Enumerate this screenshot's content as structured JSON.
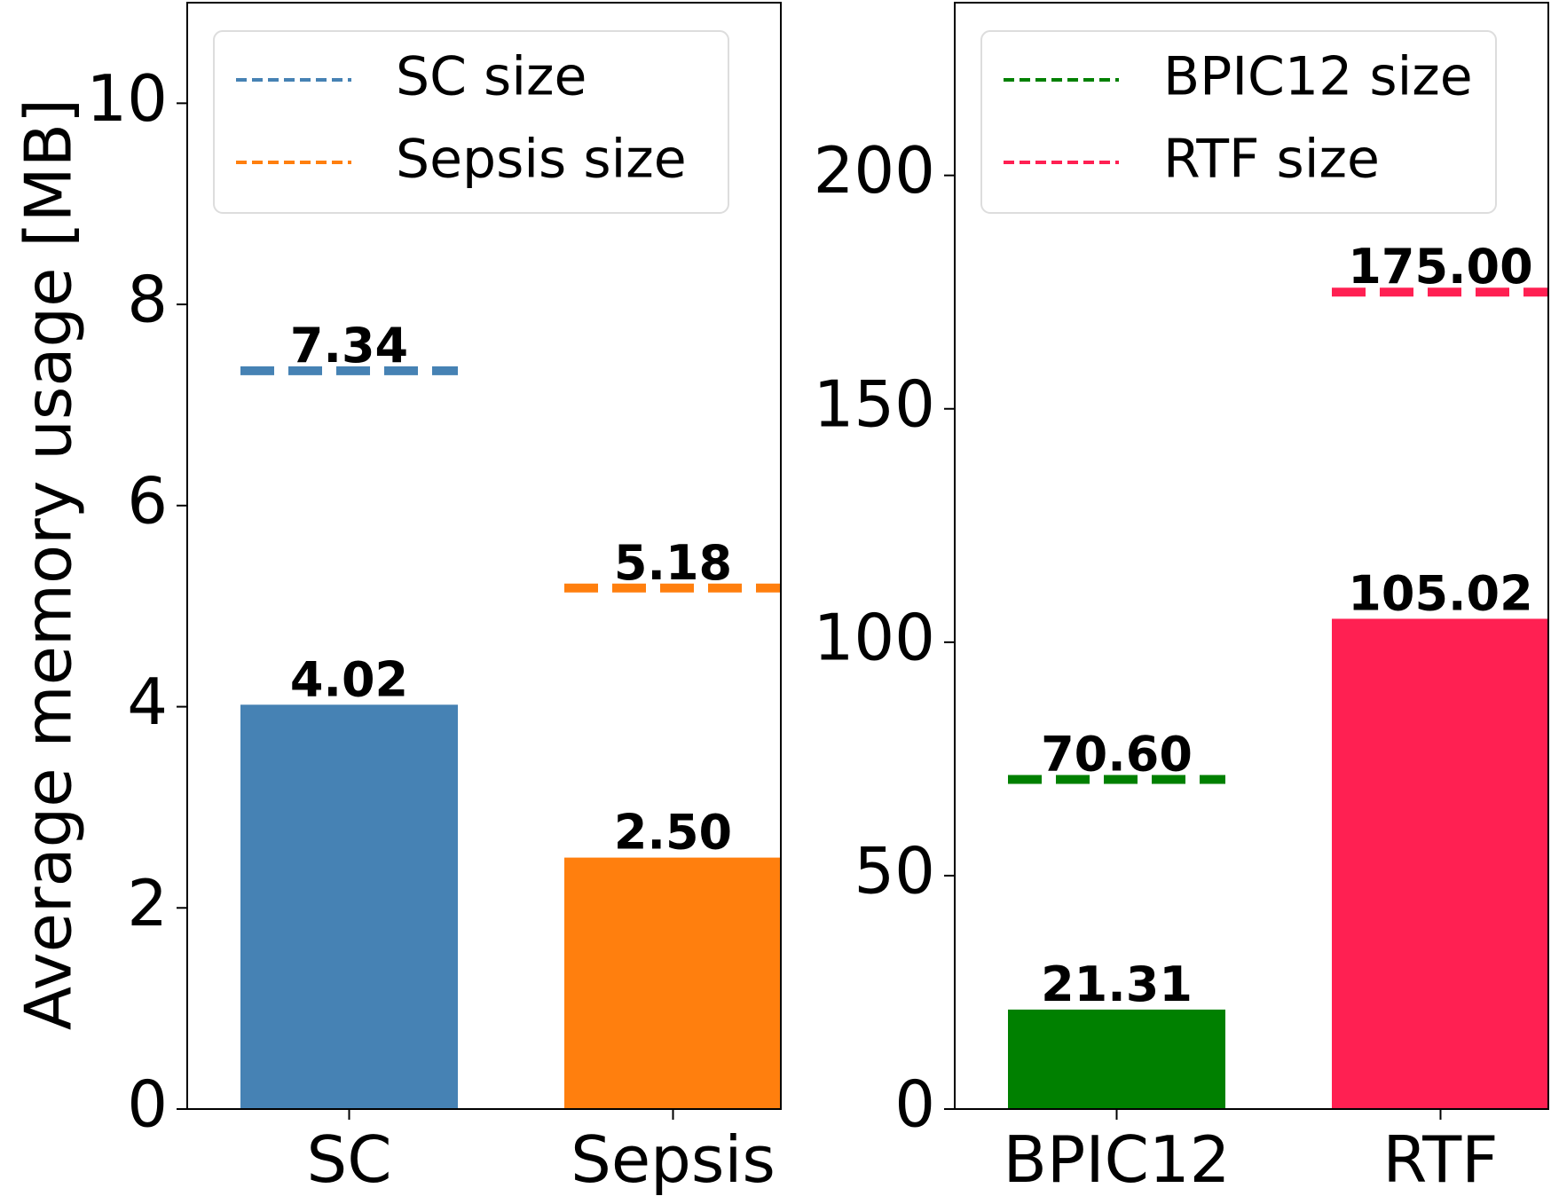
{
  "y_axis_label": "Average memory usage [MB]",
  "chart_data": [
    {
      "type": "bar",
      "categories": [
        "SC",
        "Sepsis"
      ],
      "values": [
        4.02,
        2.5
      ],
      "value_labels": [
        "4.02",
        "2.50"
      ],
      "bar_colors": [
        "#4682b4",
        "#ff7f0e"
      ],
      "ylabel": "Average memory usage [MB]",
      "ylim": [
        0,
        11
      ],
      "yticks": [
        0,
        2,
        4,
        6,
        8,
        10
      ],
      "ytick_labels": [
        "0",
        "2",
        "4",
        "6",
        "8",
        "10"
      ],
      "reference_lines": [
        {
          "category": "SC",
          "name": "SC size",
          "value": 7.34,
          "label": "7.34",
          "color": "#4682b4"
        },
        {
          "category": "Sepsis",
          "name": "Sepsis size",
          "value": 5.18,
          "label": "5.18",
          "color": "#ff7f0e"
        }
      ],
      "legend": {
        "position": "top-right",
        "entries": [
          {
            "label": "SC size",
            "color": "#4682b4",
            "style": "dashed"
          },
          {
            "label": "Sepsis size",
            "color": "#ff7f0e",
            "style": "dashed"
          }
        ]
      },
      "grid": false
    },
    {
      "type": "bar",
      "categories": [
        "BPIC12",
        "RTF"
      ],
      "values": [
        21.31,
        105.02
      ],
      "value_labels": [
        "21.31",
        "105.02"
      ],
      "bar_colors": [
        "#008000",
        "#ff2052"
      ],
      "ylim": [
        0,
        237
      ],
      "yticks": [
        0,
        50,
        100,
        150,
        200
      ],
      "ytick_labels": [
        "0",
        "50",
        "100",
        "150",
        "200"
      ],
      "reference_lines": [
        {
          "category": "BPIC12",
          "name": "BPIC12 size",
          "value": 70.6,
          "label": "70.60",
          "color": "#008000"
        },
        {
          "category": "RTF",
          "name": "RTF size",
          "value": 175.0,
          "label": "175.00",
          "color": "#ff2052"
        }
      ],
      "legend": {
        "position": "top-right",
        "entries": [
          {
            "label": "BPIC12 size",
            "color": "#008000",
            "style": "dashed"
          },
          {
            "label": "RTF size",
            "color": "#ff2052",
            "style": "dashed"
          }
        ]
      },
      "grid": false
    }
  ]
}
